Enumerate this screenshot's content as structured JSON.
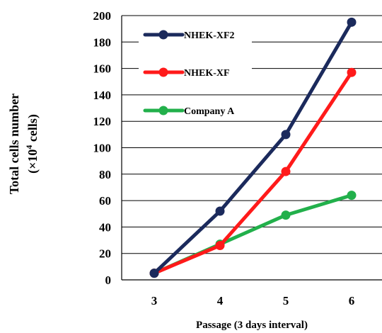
{
  "chart_data": {
    "type": "line",
    "title": "",
    "xlabel": "Passage (3 days interval)",
    "ylabel_line1": "Total cells number",
    "ylabel_line2_prefix": "(×10",
    "ylabel_line2_sup": "4",
    "ylabel_line2_suffix": " cells)",
    "x": [
      3,
      4,
      5,
      6
    ],
    "ylim": [
      0,
      200
    ],
    "yticks": [
      0,
      20,
      40,
      60,
      80,
      100,
      120,
      140,
      160,
      180,
      200
    ],
    "grid": true,
    "legend_position": "top-left",
    "series": [
      {
        "name": "NHEK-XF2",
        "values": [
          5,
          52,
          110,
          195
        ],
        "color": "#1b2a5c"
      },
      {
        "name": "NHEK-XF",
        "values": [
          5,
          26,
          82,
          157
        ],
        "color": "#ff1a1a"
      },
      {
        "name": "Company A",
        "values": [
          5,
          27,
          49,
          64
        ],
        "color": "#22b04b"
      }
    ]
  }
}
